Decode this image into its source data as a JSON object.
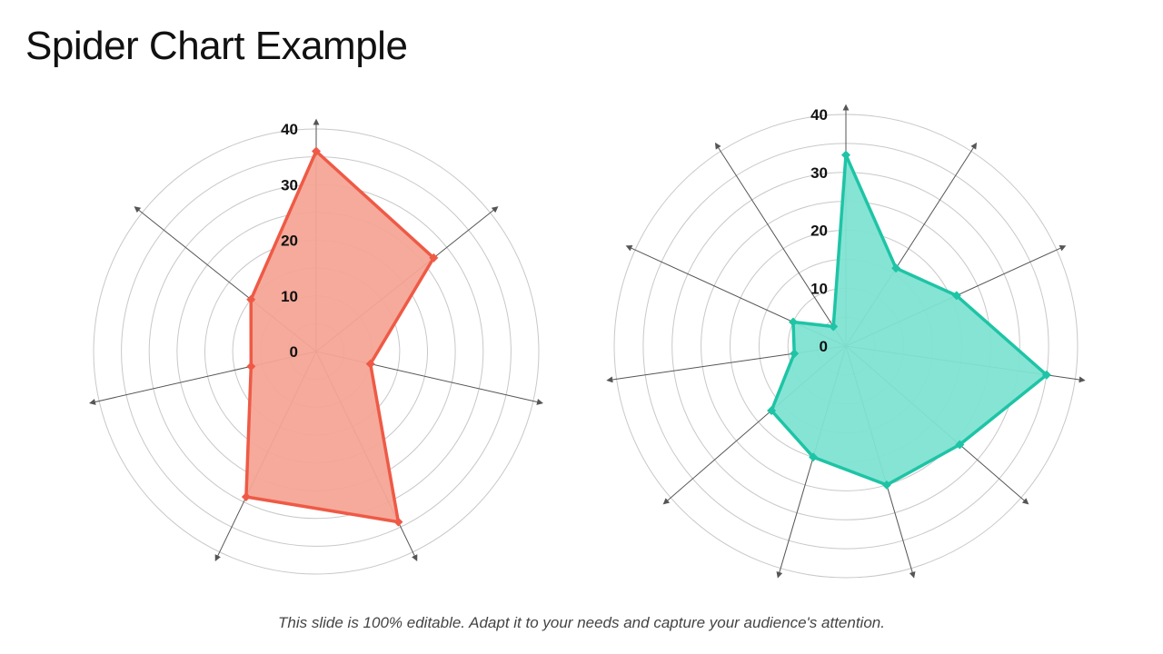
{
  "slide": {
    "title": "Spider Chart Example",
    "footer": "This slide is 100% editable. Adapt it to your needs and capture your audience's attention."
  },
  "chart_data": [
    {
      "type": "radar",
      "title": "",
      "axis_min": 0,
      "axis_max": 40,
      "ticks": [
        0,
        10,
        20,
        30,
        40
      ],
      "grid_rings": 8,
      "series": [
        {
          "values": [
            36,
            27,
            10,
            34,
            29,
            12,
            15
          ],
          "color": "#ee5a46",
          "fill": "#f4a596"
        }
      ]
    },
    {
      "type": "radar",
      "title": "",
      "axis_min": 0,
      "axis_max": 40,
      "ticks": [
        0,
        10,
        20,
        30,
        40
      ],
      "grid_rings": 8,
      "series": [
        {
          "values": [
            33,
            16,
            21,
            35,
            26,
            25,
            20,
            17,
            9,
            10,
            4
          ],
          "color": "#1ec4a6",
          "fill": "#7fe3d2"
        }
      ]
    }
  ]
}
